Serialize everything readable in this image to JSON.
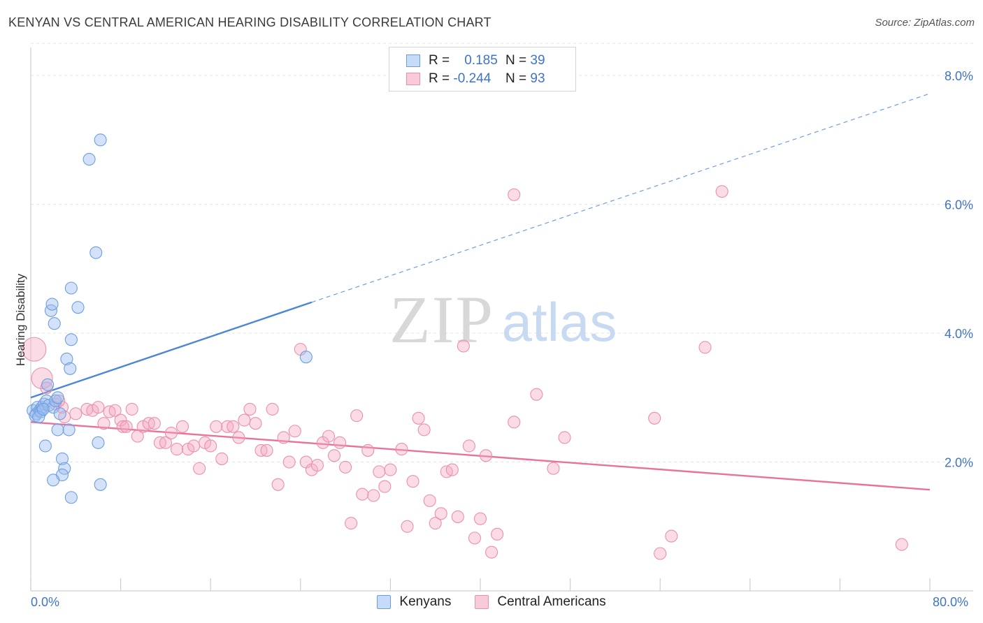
{
  "header": {
    "title": "KENYAN VS CENTRAL AMERICAN HEARING DISABILITY CORRELATION CHART",
    "source": "Source: ZipAtlas.com"
  },
  "watermark": {
    "zip": "ZIP",
    "atlas": "atlas"
  },
  "legend_top": {
    "rows": [
      {
        "r_label": "R =",
        "r_value": "0.185",
        "n_label": "N =",
        "n_value": "39",
        "color": "#9dbff0"
      },
      {
        "r_label": "R =",
        "r_value": "-0.244",
        "n_label": "N =",
        "n_value": "93",
        "color": "#f4a8c0"
      }
    ]
  },
  "legend_bottom": {
    "items": [
      {
        "label": "Kenyans",
        "color": "#9dbff0"
      },
      {
        "label": "Central Americans",
        "color": "#f4a8c0"
      }
    ]
  },
  "chart_data": {
    "type": "scatter",
    "title": "KENYAN VS CENTRAL AMERICAN HEARING DISABILITY CORRELATION CHART",
    "xlabel": "",
    "ylabel": "Hearing Disability",
    "xlim": [
      0,
      80
    ],
    "ylim": [
      0,
      8.5
    ],
    "x_tick_labels": [
      "0.0%",
      "80.0%"
    ],
    "y_ticks": [
      2,
      4,
      6,
      8
    ],
    "y_tick_labels": [
      "2.0%",
      "4.0%",
      "6.0%",
      "8.0%"
    ],
    "grid": true,
    "legend_position": "top-center",
    "colors": {
      "kenyans": "#4a86d8",
      "central_americans": "#e8729a"
    },
    "series": [
      {
        "name": "Kenyans",
        "r": 0.185,
        "n": 39,
        "trend": {
          "x0": 0,
          "y0": 3.0,
          "x_solid_end": 25,
          "y_solid_end": 4.48,
          "x_dash_end": 80,
          "y_dash_end": 7.72
        },
        "points": [
          [
            0.2,
            2.8
          ],
          [
            0.5,
            2.75
          ],
          [
            0.6,
            2.85
          ],
          [
            0.8,
            2.8
          ],
          [
            1.0,
            2.85
          ],
          [
            1.2,
            2.9
          ],
          [
            0.4,
            2.72
          ],
          [
            0.9,
            2.78
          ],
          [
            1.4,
            2.95
          ],
          [
            1.6,
            2.88
          ],
          [
            2.0,
            2.85
          ],
          [
            2.2,
            2.95
          ],
          [
            1.5,
            3.2
          ],
          [
            2.4,
            3.0
          ],
          [
            3.2,
            3.6
          ],
          [
            3.5,
            3.45
          ],
          [
            1.8,
            4.35
          ],
          [
            1.9,
            4.45
          ],
          [
            2.1,
            4.15
          ],
          [
            3.6,
            4.7
          ],
          [
            3.6,
            3.9
          ],
          [
            4.2,
            4.4
          ],
          [
            5.8,
            5.25
          ],
          [
            5.2,
            6.7
          ],
          [
            6.2,
            7.0
          ],
          [
            2.4,
            2.5
          ],
          [
            3.4,
            2.5
          ],
          [
            1.3,
            2.25
          ],
          [
            2.8,
            2.05
          ],
          [
            3.0,
            1.9
          ],
          [
            2.8,
            1.8
          ],
          [
            2.0,
            1.72
          ],
          [
            3.6,
            1.45
          ],
          [
            6.0,
            2.3
          ],
          [
            6.2,
            1.65
          ],
          [
            24.5,
            3.63
          ],
          [
            0.7,
            2.7
          ],
          [
            1.1,
            2.82
          ],
          [
            2.6,
            2.75
          ]
        ]
      },
      {
        "name": "Central Americans",
        "r": -0.244,
        "n": 93,
        "trend": {
          "x0": 0,
          "y0": 2.62,
          "x1": 80,
          "y1": 1.57
        },
        "points": [
          [
            0.3,
            3.75
          ],
          [
            1.0,
            3.3
          ],
          [
            1.4,
            3.15
          ],
          [
            2.2,
            2.9
          ],
          [
            2.8,
            2.85
          ],
          [
            3.0,
            2.7
          ],
          [
            4.0,
            2.75
          ],
          [
            5.0,
            2.82
          ],
          [
            5.5,
            2.8
          ],
          [
            6.0,
            2.85
          ],
          [
            6.5,
            2.6
          ],
          [
            7.0,
            2.78
          ],
          [
            7.5,
            2.8
          ],
          [
            8.0,
            2.65
          ],
          [
            8.2,
            2.55
          ],
          [
            8.5,
            2.55
          ],
          [
            9.0,
            2.82
          ],
          [
            9.5,
            2.4
          ],
          [
            10.0,
            2.55
          ],
          [
            10.5,
            2.6
          ],
          [
            11.0,
            2.6
          ],
          [
            11.5,
            2.3
          ],
          [
            12.0,
            2.3
          ],
          [
            12.5,
            2.45
          ],
          [
            13.0,
            2.2
          ],
          [
            13.5,
            2.55
          ],
          [
            14.0,
            2.2
          ],
          [
            14.5,
            2.25
          ],
          [
            15.0,
            1.9
          ],
          [
            15.5,
            2.3
          ],
          [
            16.0,
            2.25
          ],
          [
            16.5,
            2.55
          ],
          [
            17.0,
            2.05
          ],
          [
            17.5,
            2.55
          ],
          [
            18.0,
            2.55
          ],
          [
            18.5,
            2.38
          ],
          [
            19.0,
            2.65
          ],
          [
            19.5,
            2.82
          ],
          [
            20.0,
            2.6
          ],
          [
            20.5,
            2.18
          ],
          [
            21.0,
            2.18
          ],
          [
            21.5,
            2.82
          ],
          [
            22.0,
            1.65
          ],
          [
            22.5,
            2.38
          ],
          [
            23.0,
            2.0
          ],
          [
            23.5,
            2.48
          ],
          [
            24.0,
            3.75
          ],
          [
            24.5,
            2.0
          ],
          [
            25.0,
            1.88
          ],
          [
            25.5,
            1.95
          ],
          [
            26.0,
            2.3
          ],
          [
            26.5,
            2.4
          ],
          [
            27.0,
            2.1
          ],
          [
            27.5,
            2.3
          ],
          [
            28.0,
            1.92
          ],
          [
            28.5,
            1.05
          ],
          [
            29.0,
            2.72
          ],
          [
            29.5,
            1.5
          ],
          [
            30.0,
            2.18
          ],
          [
            30.5,
            1.48
          ],
          [
            31.0,
            1.85
          ],
          [
            31.5,
            1.62
          ],
          [
            32.0,
            1.88
          ],
          [
            33.0,
            2.2
          ],
          [
            33.5,
            1.0
          ],
          [
            34.0,
            1.7
          ],
          [
            34.5,
            2.68
          ],
          [
            35.0,
            2.5
          ],
          [
            35.5,
            1.4
          ],
          [
            36.0,
            1.05
          ],
          [
            36.5,
            1.2
          ],
          [
            37.0,
            1.85
          ],
          [
            37.5,
            1.88
          ],
          [
            38.0,
            1.15
          ],
          [
            38.5,
            3.8
          ],
          [
            39.0,
            2.25
          ],
          [
            39.5,
            0.82
          ],
          [
            40.0,
            1.12
          ],
          [
            40.5,
            2.1
          ],
          [
            41.0,
            0.6
          ],
          [
            41.5,
            0.88
          ],
          [
            43.0,
            2.62
          ],
          [
            45.0,
            3.05
          ],
          [
            46.5,
            1.9
          ],
          [
            47.5,
            2.38
          ],
          [
            43.0,
            6.15
          ],
          [
            55.5,
            2.68
          ],
          [
            56.0,
            0.58
          ],
          [
            57.0,
            0.85
          ],
          [
            60.0,
            3.78
          ],
          [
            61.5,
            6.2
          ],
          [
            77.5,
            0.72
          ],
          [
            2.5,
            2.95
          ]
        ]
      }
    ]
  }
}
